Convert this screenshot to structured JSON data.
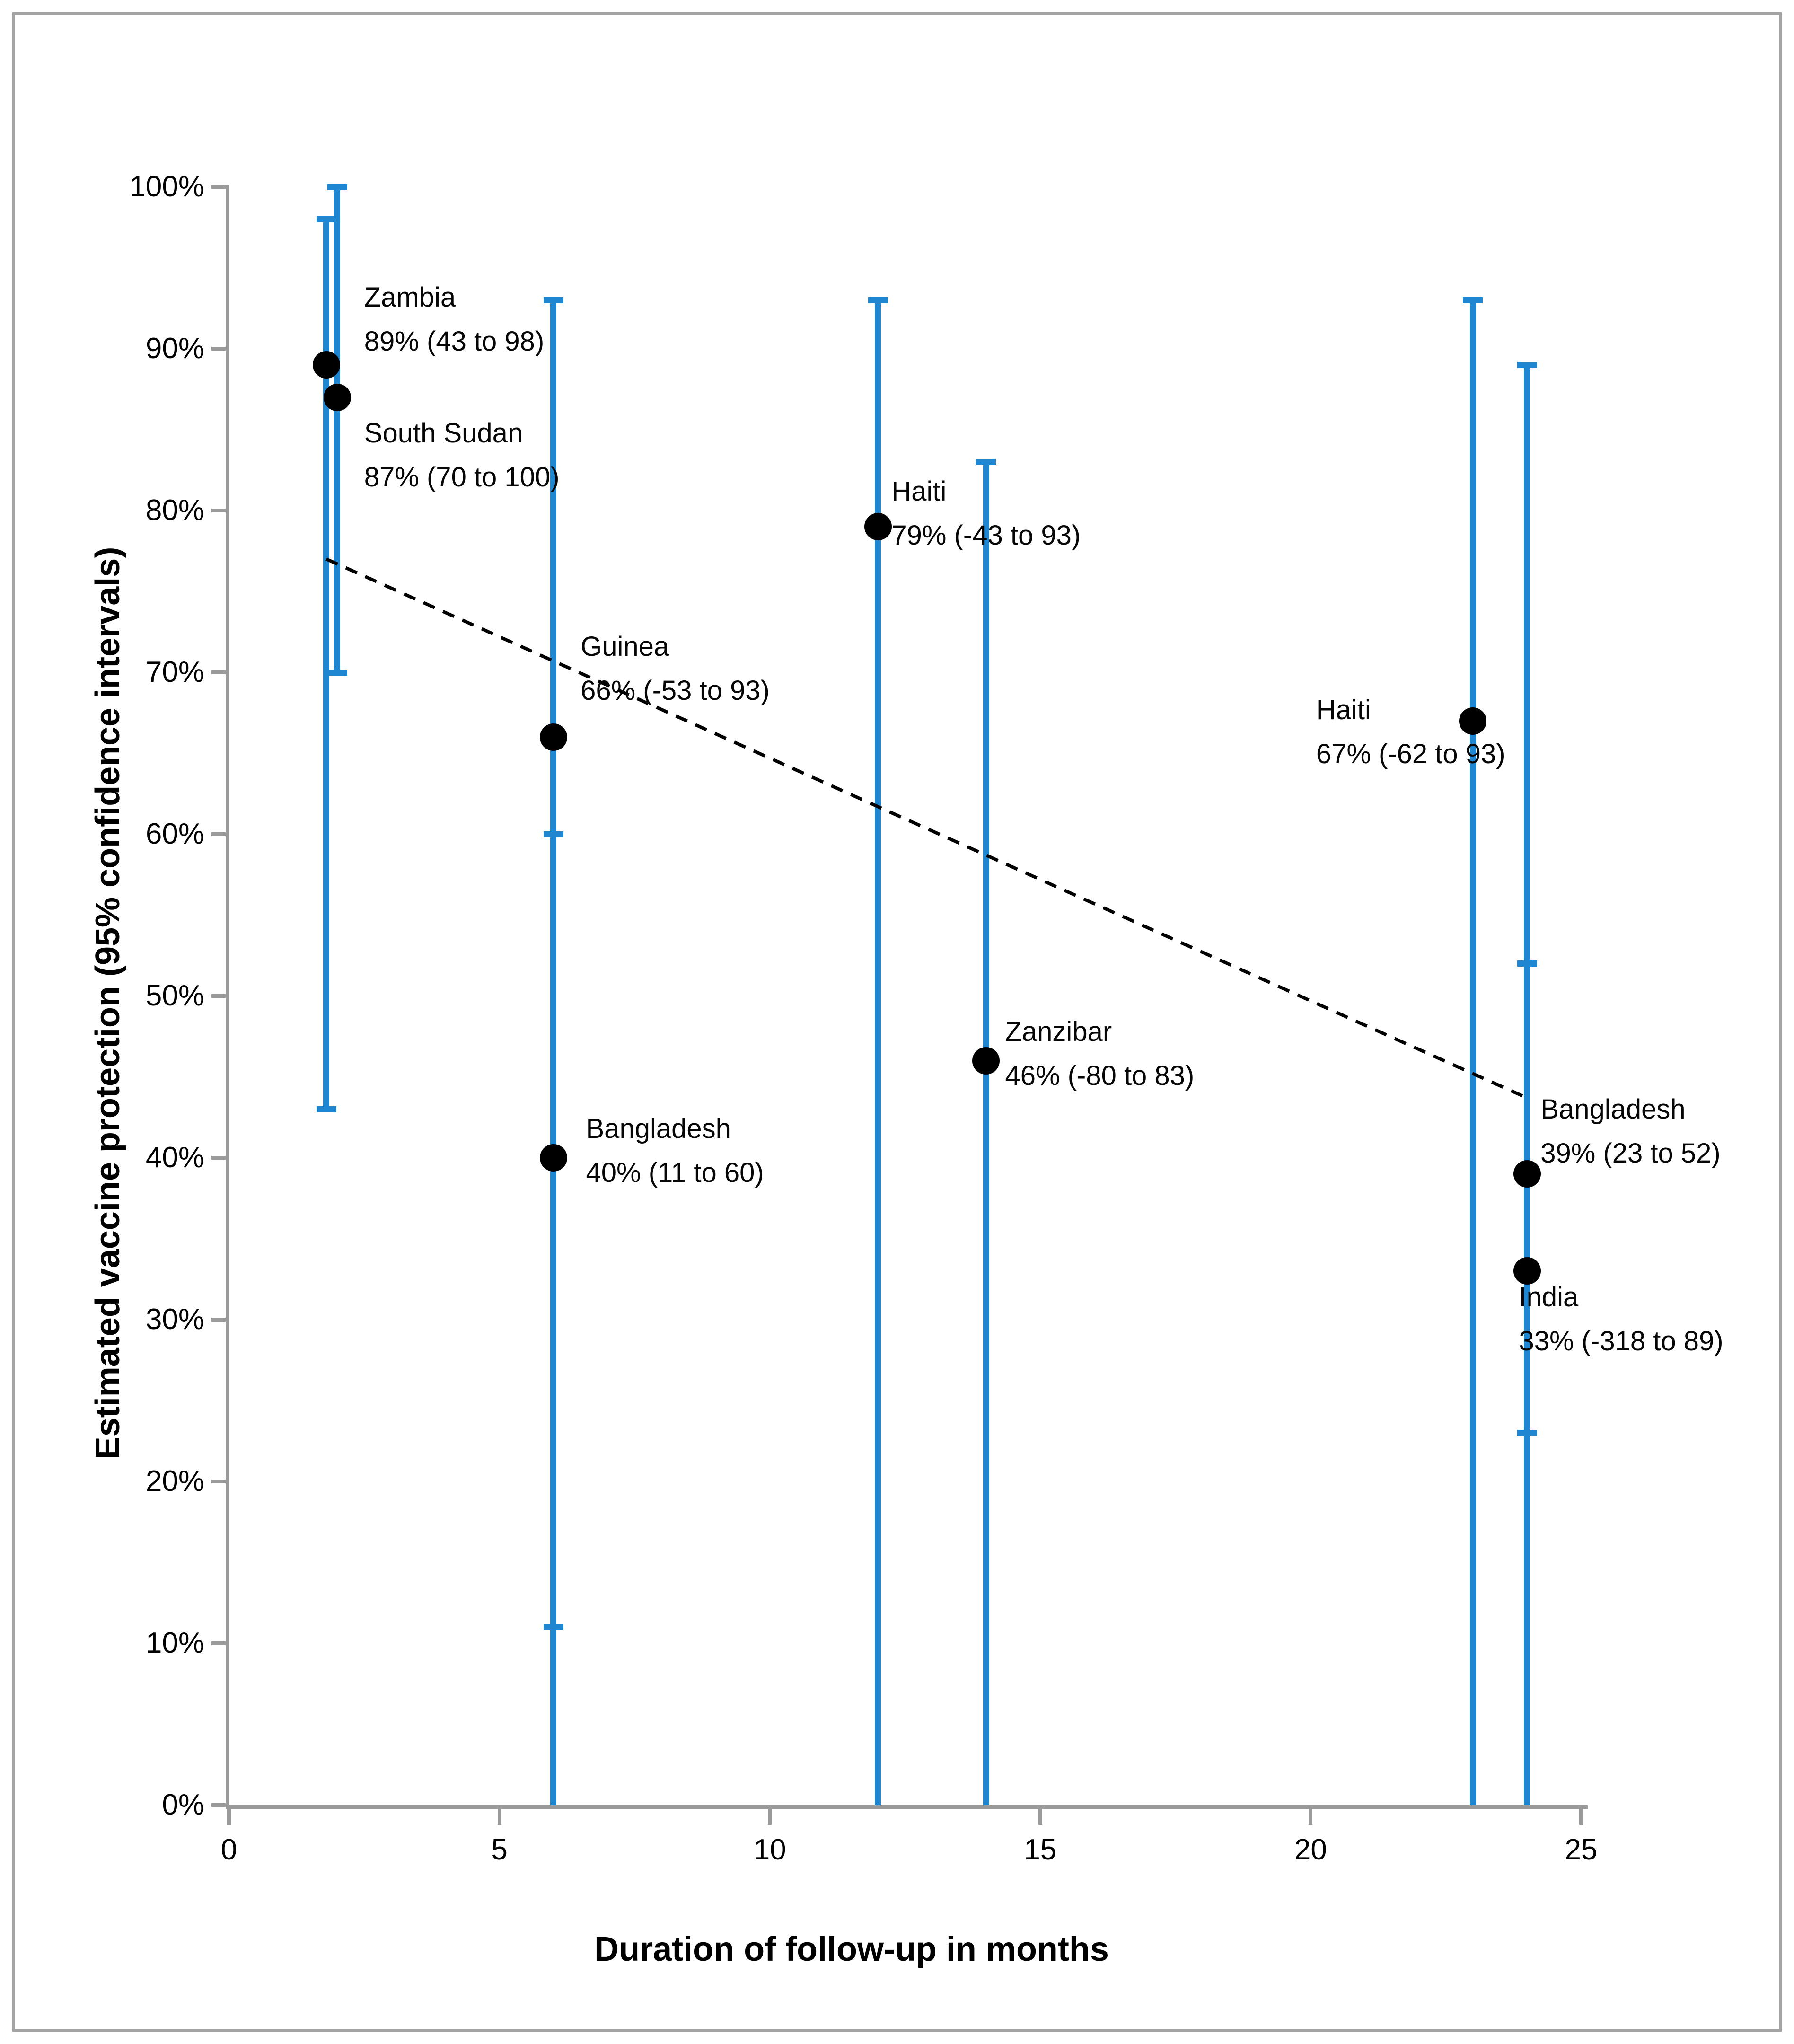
{
  "figure": {
    "border_color": "#a2a2a2",
    "background": "#ffffff"
  },
  "chart_data": {
    "type": "scatter",
    "title": "",
    "xlabel": "Duration of follow-up in months",
    "ylabel": "Estimated vaccine protection (95% confidence intervals)",
    "xlim": [
      0,
      25
    ],
    "ylim": [
      0,
      100
    ],
    "grid": false,
    "legend": "none",
    "colors": {
      "error_bar": "#1f86d2",
      "marker": "#000000",
      "trend_line": "#000000",
      "axis": "#9a9a9a",
      "text": "#000000"
    },
    "x_axis": {
      "ticks": [
        {
          "value": 0,
          "label": "0"
        },
        {
          "value": 5,
          "label": "5"
        },
        {
          "value": 10,
          "label": "10"
        },
        {
          "value": 15,
          "label": "15"
        },
        {
          "value": 20,
          "label": "20"
        },
        {
          "value": 25,
          "label": "25"
        }
      ]
    },
    "y_axis": {
      "ticks": [
        {
          "value": 0,
          "label": "0%"
        },
        {
          "value": 10,
          "label": "10%"
        },
        {
          "value": 20,
          "label": "20%"
        },
        {
          "value": 30,
          "label": "30%"
        },
        {
          "value": 40,
          "label": "40%"
        },
        {
          "value": 50,
          "label": "50%"
        },
        {
          "value": 60,
          "label": "60%"
        },
        {
          "value": 70,
          "label": "70%"
        },
        {
          "value": 80,
          "label": "80%"
        },
        {
          "value": 90,
          "label": "90%"
        },
        {
          "value": 100,
          "label": "100%"
        }
      ]
    },
    "trend_line": {
      "style": "dashed",
      "x1": 1.8,
      "y1": 77,
      "x2": 24,
      "y2": 43.7
    },
    "points": [
      {
        "name": "Zambia",
        "x": 1.8,
        "estimate": 89,
        "ci_low": 43,
        "ci_high": 98,
        "ci_text": "89% (43 to 98)",
        "label_x": 2.5,
        "label_y": 93.2
      },
      {
        "name": "South Sudan",
        "x": 2.0,
        "estimate": 87,
        "ci_low": 70,
        "ci_high": 100,
        "ci_text": "87% (70 to 100)",
        "label_x": 2.5,
        "label_y": 84.8
      },
      {
        "name": "Guinea",
        "x": 6,
        "estimate": 66,
        "ci_low": -53,
        "ci_high": 93,
        "ci_text": "66% (-53 to 93)",
        "label_x": 6.5,
        "label_y": 71.6
      },
      {
        "name": "Bangladesh",
        "x": 6,
        "estimate": 40,
        "ci_low": 11,
        "ci_high": 60,
        "ci_text": "40% (11 to 60)",
        "label_x": 6.6,
        "label_y": 41.8
      },
      {
        "name": "Haiti",
        "x": 12,
        "estimate": 79,
        "ci_low": -43,
        "ci_high": 93,
        "ci_text": "79% (-43 to 93)",
        "label_x": 12.25,
        "label_y": 81.2
      },
      {
        "name": "Zanzibar",
        "x": 14,
        "estimate": 46,
        "ci_low": -80,
        "ci_high": 83,
        "ci_text": "46% (-80 to 83)",
        "label_x": 14.35,
        "label_y": 47.8
      },
      {
        "name": "Haiti",
        "x": 23,
        "estimate": 67,
        "ci_low": -62,
        "ci_high": 93,
        "ci_text": "67% (-62 to 93)",
        "label_x": 20.1,
        "label_y": 67.7
      },
      {
        "name": "Bangladesh",
        "x": 24,
        "estimate": 39,
        "ci_low": 23,
        "ci_high": 52,
        "ci_text": "39% (23 to 52)",
        "label_x": 24.25,
        "label_y": 43.0
      },
      {
        "name": "India",
        "x": 24,
        "estimate": 33,
        "ci_low": -318,
        "ci_high": 89,
        "ci_text": "33% (-318 to 89)",
        "label_x": 23.85,
        "label_y": 31.4
      }
    ]
  }
}
